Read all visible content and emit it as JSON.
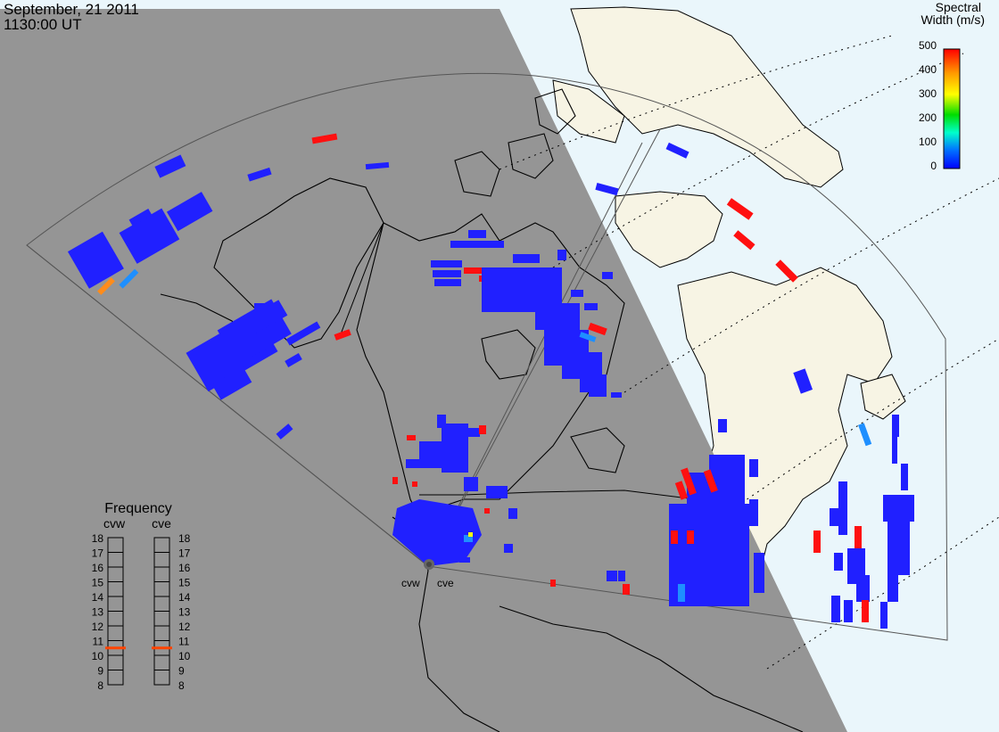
{
  "header": {
    "date": "September, 21 2011",
    "time": "1130:00 UT"
  },
  "legend": {
    "title_line1": "Spectral",
    "title_line2": "Width (m/s)",
    "ticks": [
      "500",
      "400",
      "300",
      "200",
      "100",
      "0"
    ],
    "colors": [
      "#ff0000",
      "#ff9900",
      "#ffff00",
      "#00dd00",
      "#00ffcc",
      "#00aaff",
      "#0000ff"
    ]
  },
  "frequency_panel": {
    "title": "Frequency",
    "radars": [
      "cvw",
      "cve"
    ],
    "ticks": [
      "18",
      "17",
      "16",
      "15",
      "14",
      "13",
      "12",
      "11",
      "10",
      "9",
      "8"
    ],
    "selected_mhz": 10.5,
    "selected_color": "#ff4400"
  },
  "stations": [
    {
      "label": "cvw"
    },
    {
      "label": "cve"
    }
  ],
  "colors": {
    "night": "#959595",
    "ocean_day": "#eaf6fb",
    "land_day": "#f7f4e4",
    "coast": "#000000",
    "echo_low": "#2020ff",
    "echo_high": "#ff1010",
    "echo_mid": "#1e8fff",
    "echo_orange": "#ff8c1a"
  }
}
